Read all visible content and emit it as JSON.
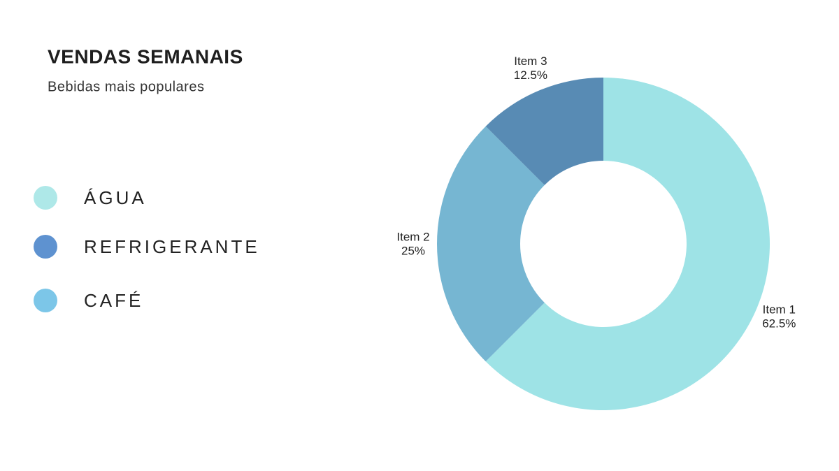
{
  "chart_data": {
    "type": "donut",
    "title": "VENDAS SEMANAIS",
    "subtitle": "Bebidas mais populares",
    "categories": [
      "Item 1",
      "Item 2",
      "Item 3"
    ],
    "values": [
      62.5,
      25,
      12.5
    ],
    "value_labels": [
      "62.5%",
      "25%",
      "12.5%"
    ],
    "colors": [
      "#9ee3e6",
      "#76b6d2",
      "#588bb4"
    ],
    "legend": [
      {
        "name": "ÁGUA",
        "color": "#aee8e8"
      },
      {
        "name": "REFRIGERANTE",
        "color": "#5e92d0"
      },
      {
        "name": "CAFÉ",
        "color": "#7cc6e8"
      }
    ]
  }
}
